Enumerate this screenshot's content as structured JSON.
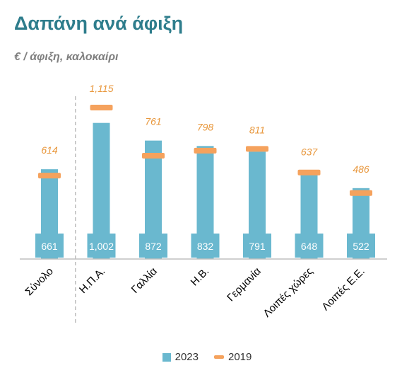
{
  "chart_data": {
    "type": "bar",
    "title": "Δαπάνη ανά άφιξη",
    "subtitle": "€ / άφιξη, καλοκαίρι",
    "categories": [
      "Σύνολο",
      "Η.Π.Α.",
      "Γαλλία",
      "Η.Β.",
      "Γερμανία",
      "Λοιπές χώρες",
      "Λοιπές Ε.Ε."
    ],
    "series": [
      {
        "name": "2023",
        "kind": "bar",
        "values": [
          661,
          1002,
          872,
          832,
          791,
          648,
          522
        ],
        "labels": [
          "661",
          "1,002",
          "872",
          "832",
          "791",
          "648",
          "522"
        ]
      },
      {
        "name": "2019",
        "kind": "marker",
        "values": [
          614,
          1115,
          761,
          798,
          811,
          637,
          486
        ],
        "labels": [
          "614",
          "1,115",
          "761",
          "798",
          "811",
          "637",
          "486"
        ]
      }
    ],
    "ylim": [
      0,
      1200
    ],
    "grid": false,
    "separator_after_category": 0,
    "legend_position": "bottom",
    "colors": {
      "bar": "#6ab8cf",
      "marker": "#f5a25d",
      "marker_label": "#e8963a",
      "bar_label": "#ffffff",
      "title": "#2e7d8c",
      "subtitle": "#7f7f7f",
      "axis": "#bfbfbf"
    }
  }
}
